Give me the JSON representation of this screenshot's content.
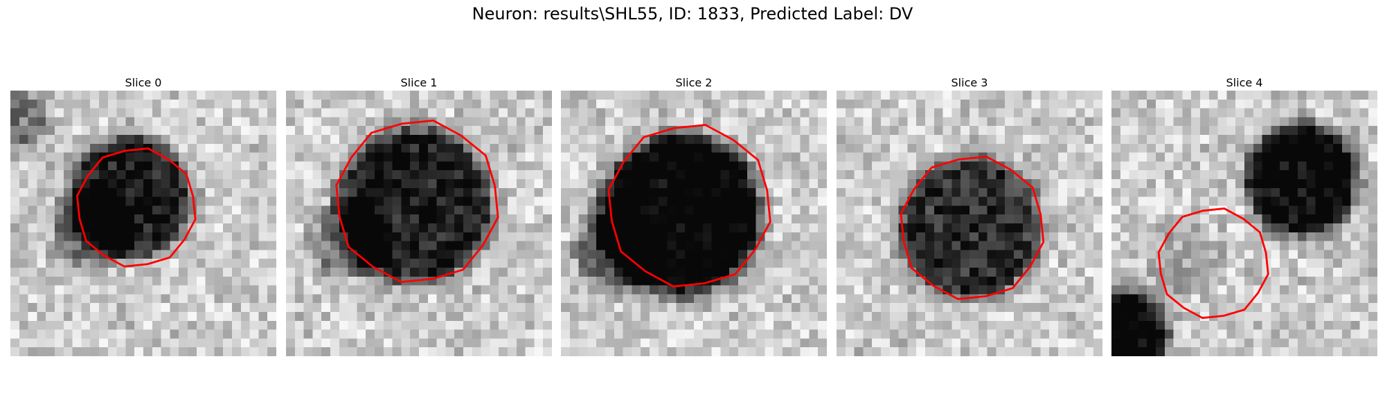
{
  "figure": {
    "title": "Neuron: results\\SHL55, ID: 1833, Predicted Label: DV"
  },
  "panels": [
    {
      "title": "Slice 0",
      "blobs": [
        {
          "cx": 13.5,
          "cy": 12.0,
          "r": 5.5,
          "depth": 0.72
        },
        {
          "cx": 9.0,
          "cy": 15.5,
          "r": 3.0,
          "depth": 0.35
        },
        {
          "cx": 0.5,
          "cy": 3.5,
          "r": 2.5,
          "depth": 0.3
        }
      ],
      "contour_center": [
        14.2,
        13.2
      ],
      "contour_radius": 6.8,
      "seed": 11
    },
    {
      "title": "Slice 1",
      "blobs": [
        {
          "cx": 14.5,
          "cy": 13.0,
          "r": 7.5,
          "depth": 0.68
        },
        {
          "cx": 7.0,
          "cy": 17.0,
          "r": 3.0,
          "depth": 0.3
        }
      ],
      "contour_center": [
        14.8,
        12.5
      ],
      "contour_radius": 9.3,
      "seed": 23
    },
    {
      "title": "Slice 2",
      "blobs": [
        {
          "cx": 13.5,
          "cy": 14.0,
          "r": 7.8,
          "depth": 0.85
        },
        {
          "cx": 6.0,
          "cy": 18.0,
          "r": 3.0,
          "depth": 0.45
        }
      ],
      "contour_center": [
        14.5,
        13.0
      ],
      "contour_radius": 9.3,
      "seed": 37
    },
    {
      "title": "Slice 3",
      "blobs": [
        {
          "cx": 15.0,
          "cy": 15.5,
          "r": 6.8,
          "depth": 0.62
        }
      ],
      "contour_center": [
        15.3,
        15.5
      ],
      "contour_radius": 8.2,
      "seed": 51
    },
    {
      "title": "Slice 4",
      "blobs": [
        {
          "cx": 21.5,
          "cy": 10.0,
          "r": 5.0,
          "depth": 0.8
        },
        {
          "cx": 1.5,
          "cy": 27.5,
          "r": 3.5,
          "depth": 0.85
        },
        {
          "cx": 8.0,
          "cy": 19.0,
          "r": 3.0,
          "depth": 0.12
        }
      ],
      "contour_center": [
        11.5,
        19.5
      ],
      "contour_radius": 6.3,
      "seed": 67
    }
  ],
  "colors": {
    "contour": "#ff0000"
  }
}
